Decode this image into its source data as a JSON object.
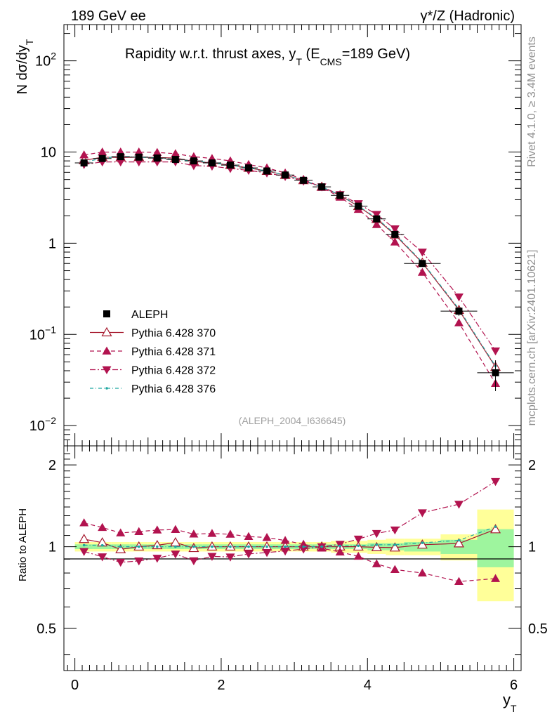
{
  "header": {
    "left": "189 GeV ee",
    "right": "γ*/Z (Hadronic)"
  },
  "side": {
    "rivet": "Rivet 4.1.0, ≥ 3.4M events",
    "mcplots": "mcplots.cern.ch [arXiv:2401.10621]"
  },
  "chart_data": {
    "type": "line",
    "title": "Rapidity w.r.t. thrust axes, y_T (E_CMS=189 GeV)",
    "watermark": "(ALEPH_2004_I636645)",
    "xlabel": "y_T",
    "ylabel": "N dσ/dy_T",
    "ratio_ylabel": "Ratio to ALEPH",
    "xlim": [
      -0.15,
      6.1
    ],
    "ylim": [
      0.006,
      250
    ],
    "ylog": true,
    "ratio_ylim": [
      0.35,
      2.35
    ],
    "x_ticks": [
      0,
      2,
      4,
      6
    ],
    "y_ticks": [
      {
        "value": 0.01,
        "base": "10",
        "exp": "−2"
      },
      {
        "value": 0.1,
        "base": "10",
        "exp": "−1"
      },
      {
        "value": 1,
        "base": "1",
        "exp": ""
      },
      {
        "value": 10,
        "base": "10",
        "exp": ""
      },
      {
        "value": 100,
        "base": "10",
        "exp": "2"
      }
    ],
    "ratio_ticks": [
      0.5,
      1,
      2
    ],
    "x": [
      0.125,
      0.375,
      0.625,
      0.875,
      1.125,
      1.375,
      1.625,
      1.875,
      2.125,
      2.375,
      2.625,
      2.875,
      3.125,
      3.375,
      3.625,
      3.875,
      4.125,
      4.375,
      4.75,
      5.25,
      5.75
    ],
    "data": {
      "name": "ALEPH",
      "values": [
        7.6,
        8.5,
        8.9,
        8.8,
        8.6,
        8.3,
        8.0,
        7.6,
        7.2,
        6.7,
        6.2,
        5.6,
        4.9,
        4.15,
        3.35,
        2.55,
        1.85,
        1.25,
        0.6,
        0.18,
        0.038
      ]
    },
    "bands": [
      {
        "x0": 0,
        "x1": 0.25,
        "stat": 0.02,
        "tot": 0.04
      },
      {
        "x0": 0.25,
        "x1": 0.5,
        "stat": 0.02,
        "tot": 0.04
      },
      {
        "x0": 0.5,
        "x1": 0.75,
        "stat": 0.02,
        "tot": 0.04
      },
      {
        "x0": 0.75,
        "x1": 1.0,
        "stat": 0.02,
        "tot": 0.04
      },
      {
        "x0": 1.0,
        "x1": 1.25,
        "stat": 0.02,
        "tot": 0.04
      },
      {
        "x0": 1.25,
        "x1": 1.5,
        "stat": 0.02,
        "tot": 0.04
      },
      {
        "x0": 1.5,
        "x1": 1.75,
        "stat": 0.02,
        "tot": 0.04
      },
      {
        "x0": 1.75,
        "x1": 2.0,
        "stat": 0.02,
        "tot": 0.04
      },
      {
        "x0": 2.0,
        "x1": 2.25,
        "stat": 0.02,
        "tot": 0.04
      },
      {
        "x0": 2.25,
        "x1": 2.5,
        "stat": 0.02,
        "tot": 0.04
      },
      {
        "x0": 2.5,
        "x1": 2.75,
        "stat": 0.02,
        "tot": 0.04
      },
      {
        "x0": 2.75,
        "x1": 3.0,
        "stat": 0.02,
        "tot": 0.04
      },
      {
        "x0": 3.0,
        "x1": 3.25,
        "stat": 0.02,
        "tot": 0.04
      },
      {
        "x0": 3.25,
        "x1": 3.5,
        "stat": 0.02,
        "tot": 0.04
      },
      {
        "x0": 3.5,
        "x1": 3.75,
        "stat": 0.02,
        "tot": 0.05
      },
      {
        "x0": 3.75,
        "x1": 4.0,
        "stat": 0.02,
        "tot": 0.05
      },
      {
        "x0": 4.0,
        "x1": 4.25,
        "stat": 0.03,
        "tot": 0.06
      },
      {
        "x0": 4.25,
        "x1": 4.5,
        "stat": 0.03,
        "tot": 0.07
      },
      {
        "x0": 4.5,
        "x1": 5.0,
        "stat": 0.04,
        "tot": 0.07
      },
      {
        "x0": 5.0,
        "x1": 5.5,
        "stat": 0.06,
        "tot": 0.11
      },
      {
        "x0": 5.5,
        "x1": 6.0,
        "stat": 0.16,
        "tot": 0.37
      }
    ],
    "series": [
      {
        "name": "Pythia 6.428 370",
        "color": "#a6192e",
        "dash": "",
        "marker": "open-triangle-up",
        "values": [
          8.1,
          8.8,
          8.7,
          8.8,
          8.7,
          8.6,
          7.9,
          7.6,
          7.2,
          6.7,
          6.2,
          5.6,
          4.9,
          4.15,
          3.35,
          2.55,
          1.84,
          1.24,
          0.61,
          0.185,
          0.044
        ]
      },
      {
        "name": "Pythia 6.428 371",
        "color": "#b2134f",
        "dash": "6,4",
        "marker": "filled-triangle-up",
        "values": [
          9.3,
          10.0,
          10.0,
          10.0,
          9.9,
          9.6,
          8.9,
          8.5,
          8.0,
          7.3,
          6.7,
          5.9,
          5.0,
          4.1,
          3.2,
          2.35,
          1.6,
          1.03,
          0.48,
          0.134,
          0.029
        ]
      },
      {
        "name": "Pythia 6.428 372",
        "color": "#b2134f",
        "dash": "8,3,2,3",
        "marker": "filled-triangle-down",
        "values": [
          7.3,
          7.8,
          7.8,
          7.8,
          7.8,
          7.8,
          7.1,
          7.0,
          6.6,
          6.3,
          5.9,
          5.4,
          4.8,
          4.15,
          3.42,
          2.72,
          2.07,
          1.44,
          0.8,
          0.258,
          0.066
        ]
      },
      {
        "name": "Pythia 6.428 376",
        "color": "#1fa6a0",
        "dash": "5,3,1,3",
        "marker": "dot",
        "values": [
          7.7,
          8.6,
          8.9,
          8.8,
          8.6,
          8.3,
          8.0,
          7.6,
          7.2,
          6.7,
          6.2,
          5.6,
          4.9,
          4.15,
          3.37,
          2.57,
          1.88,
          1.27,
          0.62,
          0.19,
          0.045
        ]
      }
    ]
  }
}
